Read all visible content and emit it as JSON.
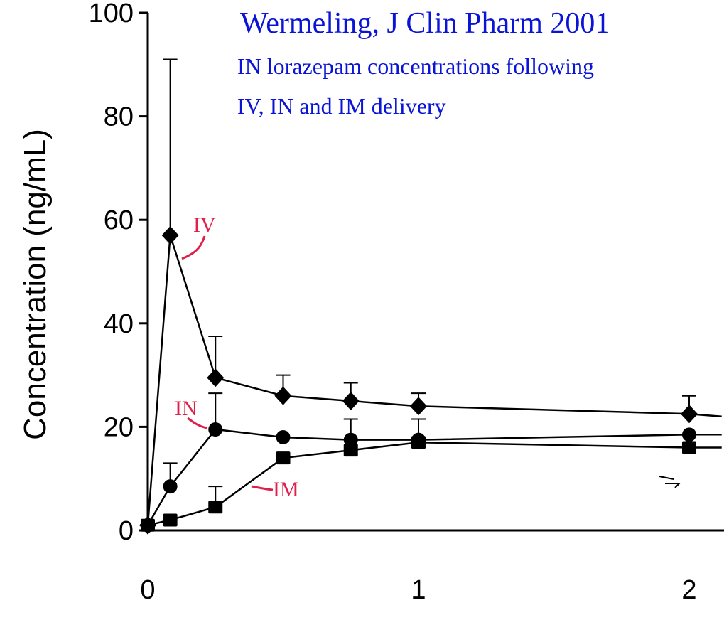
{
  "colors": {
    "annotation": "#0a14d6",
    "series_label": "#e0204a",
    "axis": "#000000"
  },
  "chart_data": {
    "type": "line",
    "title": "Wermeling, J Clin Pharm 2001",
    "subtitle_lines": [
      "IN lorazepam concentrations following",
      "IV, IN and IM delivery"
    ],
    "xlabel": "",
    "ylabel": "Concentration (ng/mL)",
    "xlim": [
      0,
      2.12
    ],
    "ylim": [
      0,
      100
    ],
    "x_ticks": [
      "0",
      "1",
      "2"
    ],
    "y_ticks": [
      "0",
      "20",
      "40",
      "60",
      "80",
      "100"
    ],
    "grid": false,
    "series": [
      {
        "name": "IV",
        "marker": "diamond",
        "x": [
          0,
          0.083,
          0.25,
          0.5,
          0.75,
          1,
          2,
          2.12
        ],
        "y": [
          1,
          57,
          29.5,
          26,
          25,
          24,
          22.5,
          22
        ],
        "err": [
          0,
          34,
          8,
          4,
          3.5,
          2.5,
          3.5,
          null
        ]
      },
      {
        "name": "IN",
        "marker": "circle",
        "x": [
          0,
          0.083,
          0.25,
          0.5,
          0.75,
          1,
          2,
          2.12
        ],
        "y": [
          1,
          8.5,
          19.5,
          18,
          17.5,
          17.5,
          18.5,
          18.5
        ],
        "err": [
          0,
          4.5,
          7,
          0,
          4,
          4,
          0,
          null
        ]
      },
      {
        "name": "IM",
        "marker": "square",
        "x": [
          0,
          0.083,
          0.25,
          0.5,
          0.75,
          1,
          2,
          2.12
        ],
        "y": [
          1,
          2,
          4.5,
          14,
          15.5,
          17,
          16,
          16
        ],
        "err": [
          0,
          0,
          4,
          0,
          0,
          0,
          0,
          null
        ]
      }
    ]
  }
}
